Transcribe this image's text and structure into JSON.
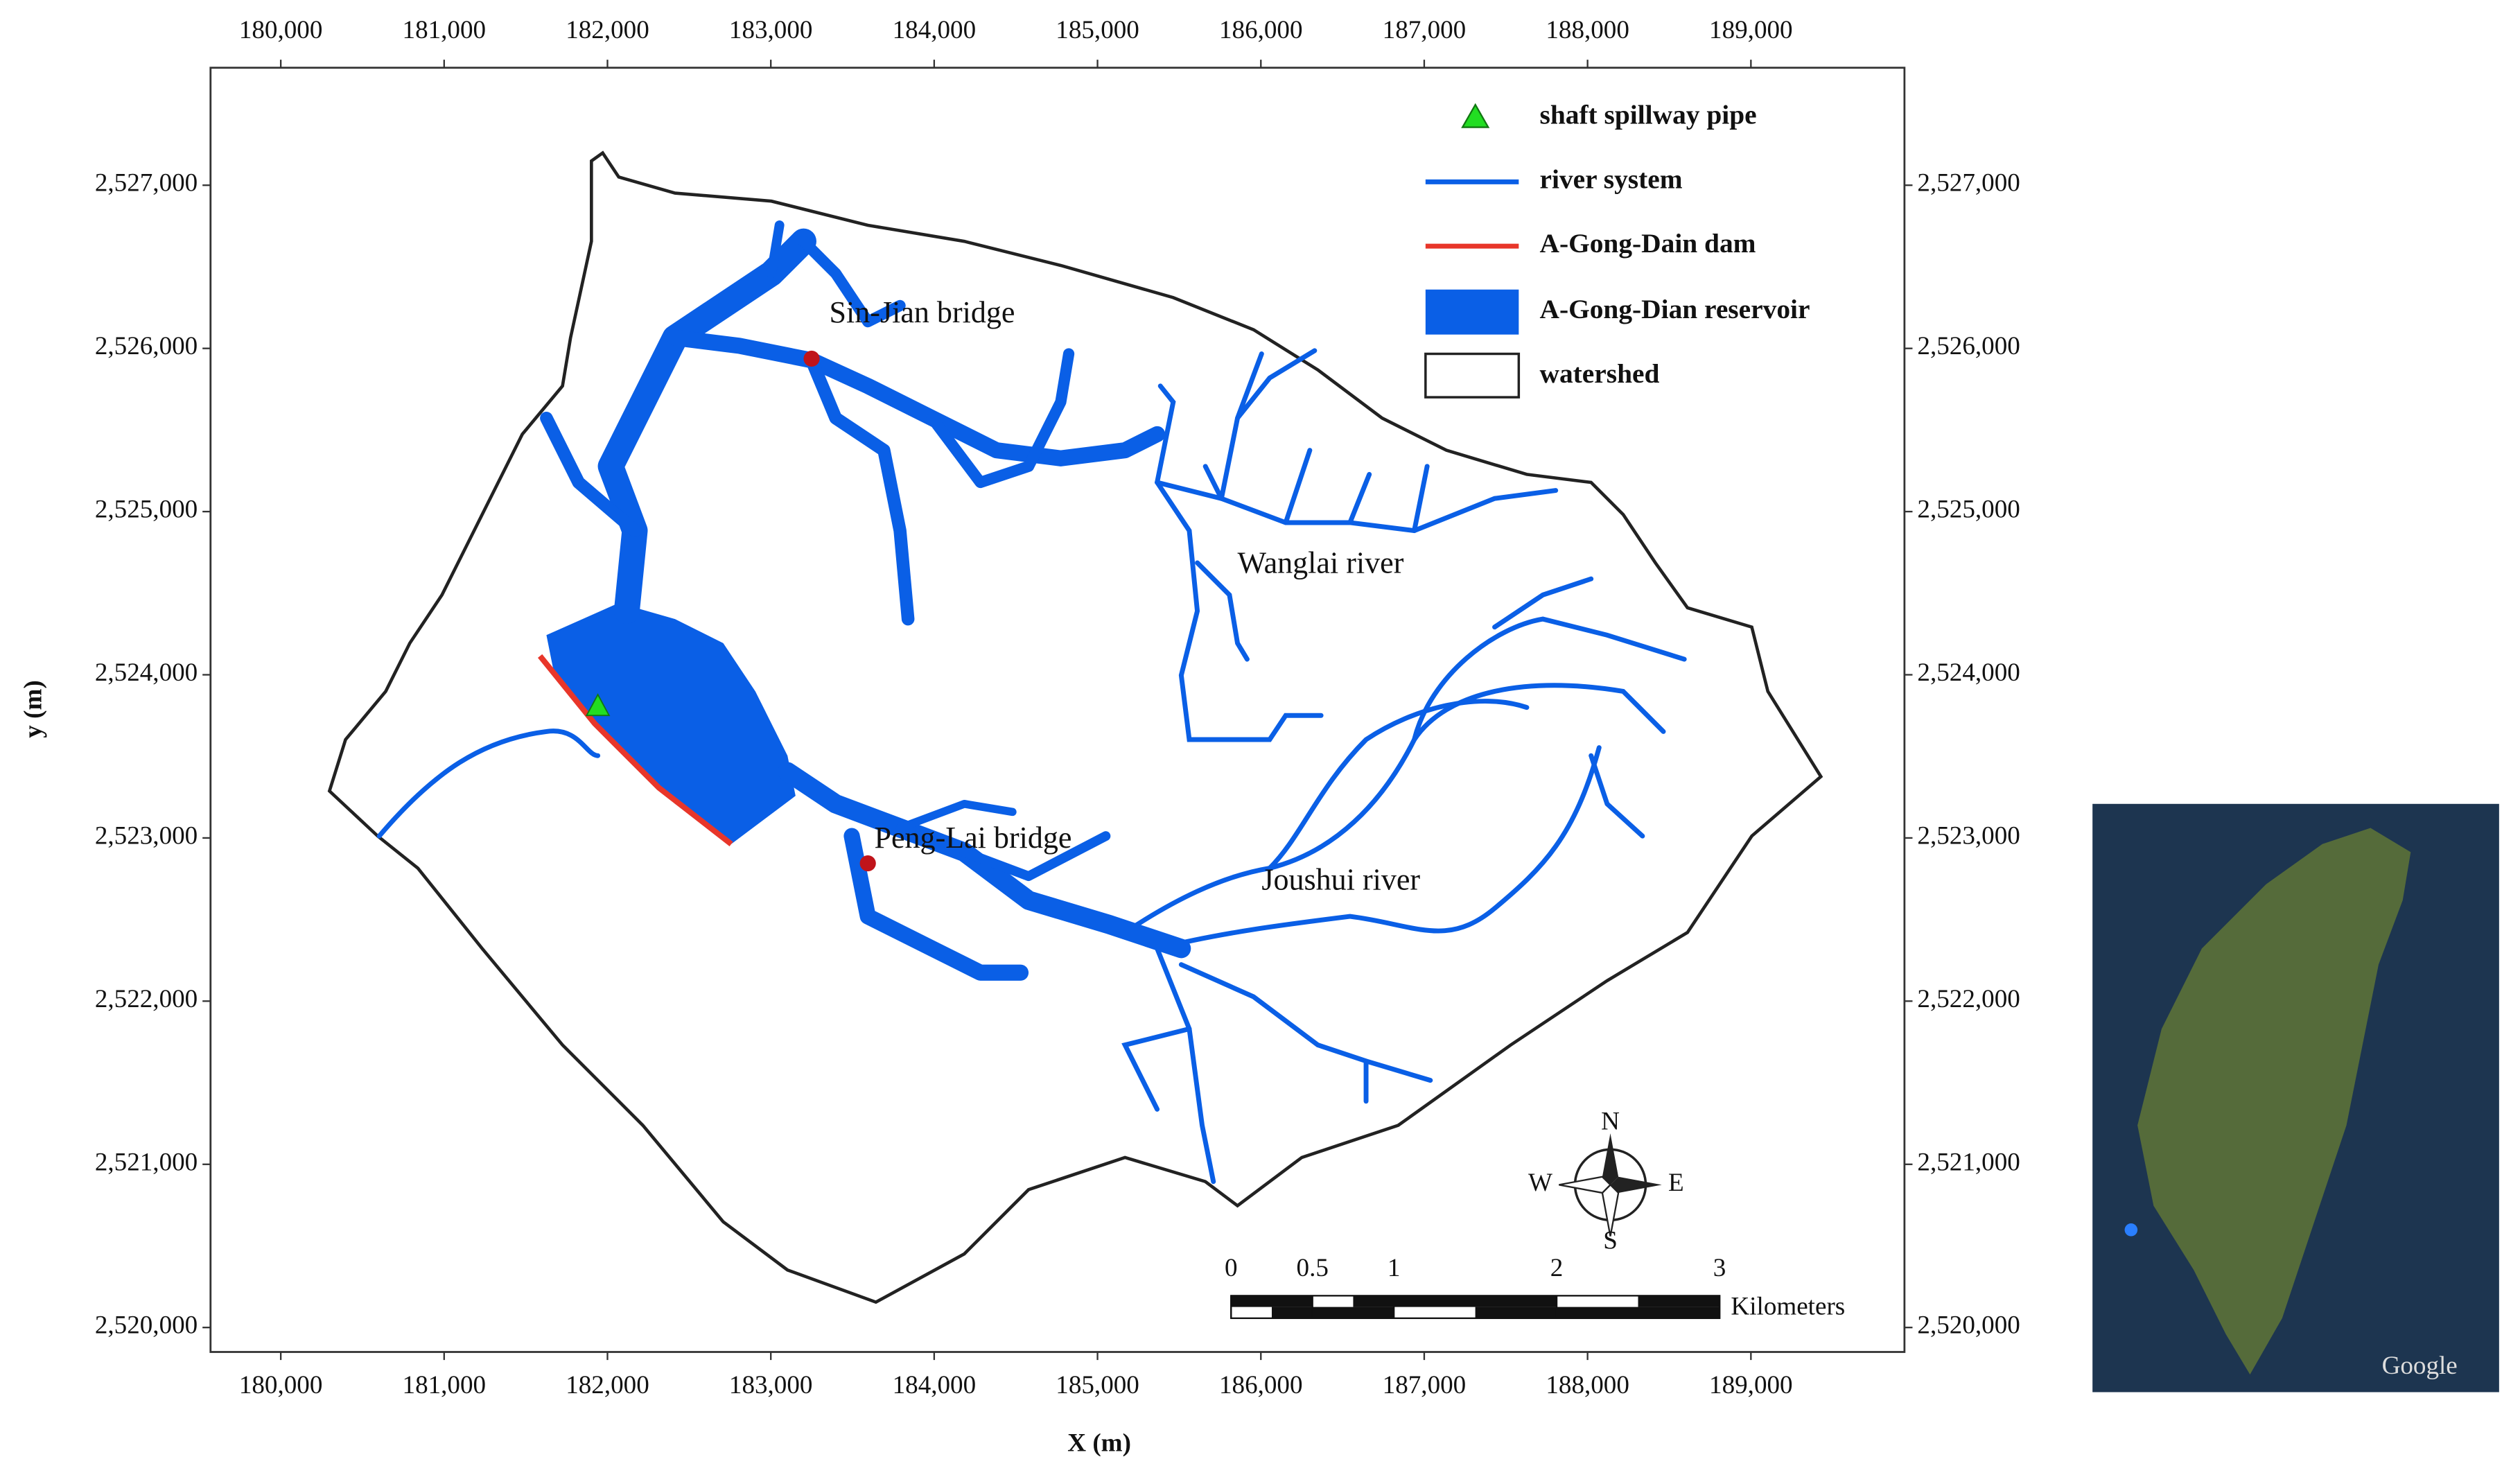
{
  "map": {
    "x_axis": {
      "label": "X (m)",
      "lim": [
        179570,
        189940
      ],
      "ticks": [
        {
          "value": 180000,
          "label": "180,000"
        },
        {
          "value": 181000,
          "label": "181,000"
        },
        {
          "value": 182000,
          "label": "182,000"
        },
        {
          "value": 183000,
          "label": "183,000"
        },
        {
          "value": 184000,
          "label": "184,000"
        },
        {
          "value": 185000,
          "label": "185,000"
        },
        {
          "value": 186000,
          "label": "186,000"
        },
        {
          "value": 187000,
          "label": "187,000"
        },
        {
          "value": 188000,
          "label": "188,000"
        },
        {
          "value": 189000,
          "label": "189,000"
        }
      ]
    },
    "y_axis": {
      "label": "y (m)",
      "lim": [
        2519850,
        2527720
      ],
      "ticks": [
        {
          "value": 2520000,
          "label": "2,520,000"
        },
        {
          "value": 2521000,
          "label": "2,521,000"
        },
        {
          "value": 2522000,
          "label": "2,522,000"
        },
        {
          "value": 2523000,
          "label": "2,523,000"
        },
        {
          "value": 2524000,
          "label": "2,524,000"
        },
        {
          "value": 2525000,
          "label": "2,525,000"
        },
        {
          "value": 2526000,
          "label": "2,526,000"
        },
        {
          "value": 2527000,
          "label": "2,527,000"
        }
      ]
    },
    "legend": [
      "shaft spillway pipe",
      "river system",
      "A-Gong-Dain dam",
      "A-Gong-Dian reservoir",
      "watershed"
    ],
    "places": {
      "sin_jian": "Sin-Jian bridge",
      "peng_lai": "Peng-Lai bridge",
      "wanglai": "Wanglai river",
      "joushui": "Joushui river"
    },
    "compass": {
      "n": "N",
      "e": "E",
      "s": "S",
      "w": "W"
    },
    "scale_bar": {
      "ticks": [
        0,
        0.5,
        1,
        2,
        3
      ],
      "unit": "Kilometers"
    },
    "inset": {
      "credit": "Google"
    }
  }
}
